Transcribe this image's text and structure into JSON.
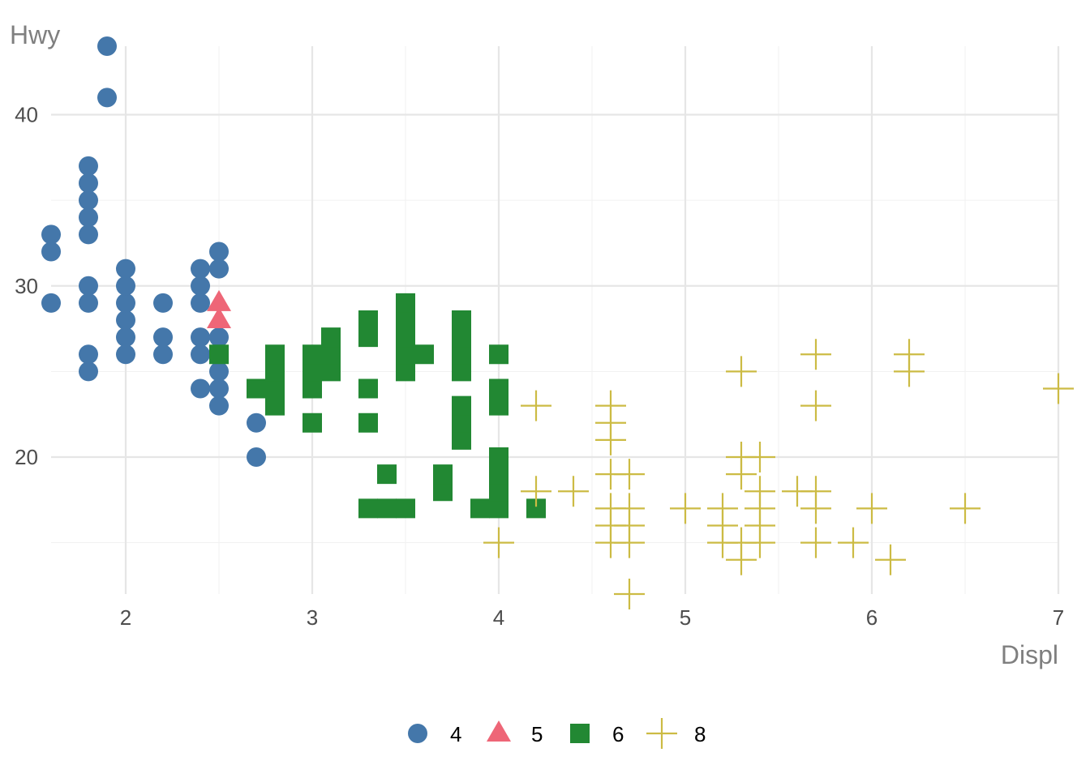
{
  "chart_data": {
    "type": "scatter",
    "title": "",
    "xlabel": "Displ",
    "ylabel": "Hwy",
    "xlim": [
      1.6,
      7.0
    ],
    "ylim": [
      12,
      44
    ],
    "x_ticks": [
      2,
      3,
      4,
      5,
      6,
      7
    ],
    "y_ticks": [
      20,
      30,
      40
    ],
    "grid": true,
    "legend_position": "bottom",
    "series": [
      {
        "name": "4",
        "shape": "circle",
        "color": "#4477AA",
        "points": [
          [
            1.6,
            29
          ],
          [
            1.6,
            32
          ],
          [
            1.6,
            33
          ],
          [
            1.8,
            25
          ],
          [
            1.8,
            26
          ],
          [
            1.8,
            29
          ],
          [
            1.8,
            30
          ],
          [
            1.8,
            33
          ],
          [
            1.8,
            34
          ],
          [
            1.8,
            35
          ],
          [
            1.8,
            36
          ],
          [
            1.8,
            37
          ],
          [
            1.9,
            41
          ],
          [
            1.9,
            44
          ],
          [
            2.0,
            26
          ],
          [
            2.0,
            27
          ],
          [
            2.0,
            28
          ],
          [
            2.0,
            29
          ],
          [
            2.0,
            30
          ],
          [
            2.0,
            31
          ],
          [
            2.2,
            26
          ],
          [
            2.2,
            27
          ],
          [
            2.2,
            29
          ],
          [
            2.4,
            24
          ],
          [
            2.4,
            26
          ],
          [
            2.4,
            27
          ],
          [
            2.4,
            29
          ],
          [
            2.4,
            30
          ],
          [
            2.4,
            31
          ],
          [
            2.5,
            23
          ],
          [
            2.5,
            24
          ],
          [
            2.5,
            25
          ],
          [
            2.5,
            26
          ],
          [
            2.5,
            27
          ],
          [
            2.5,
            31
          ],
          [
            2.5,
            32
          ],
          [
            2.7,
            20
          ],
          [
            2.7,
            22
          ]
        ]
      },
      {
        "name": "5",
        "shape": "triangle",
        "color": "#EE6677",
        "points": [
          [
            2.5,
            28
          ],
          [
            2.5,
            29
          ]
        ]
      },
      {
        "name": "6",
        "shape": "square",
        "color": "#228833",
        "points": [
          [
            2.5,
            26
          ],
          [
            2.7,
            24
          ],
          [
            2.8,
            23
          ],
          [
            2.8,
            24
          ],
          [
            2.8,
            25
          ],
          [
            2.8,
            26
          ],
          [
            3.0,
            22
          ],
          [
            3.0,
            24
          ],
          [
            3.0,
            25
          ],
          [
            3.0,
            26
          ],
          [
            3.1,
            25
          ],
          [
            3.1,
            26
          ],
          [
            3.1,
            27
          ],
          [
            3.3,
            17
          ],
          [
            3.3,
            22
          ],
          [
            3.3,
            24
          ],
          [
            3.3,
            27
          ],
          [
            3.3,
            28
          ],
          [
            3.4,
            17
          ],
          [
            3.4,
            19
          ],
          [
            3.5,
            17
          ],
          [
            3.5,
            25
          ],
          [
            3.5,
            26
          ],
          [
            3.5,
            27
          ],
          [
            3.5,
            28
          ],
          [
            3.5,
            29
          ],
          [
            3.6,
            26
          ],
          [
            3.7,
            18
          ],
          [
            3.7,
            19
          ],
          [
            3.8,
            21
          ],
          [
            3.8,
            22
          ],
          [
            3.8,
            23
          ],
          [
            3.8,
            25
          ],
          [
            3.8,
            26
          ],
          [
            3.8,
            27
          ],
          [
            3.8,
            28
          ],
          [
            3.9,
            17
          ],
          [
            4.0,
            17
          ],
          [
            4.0,
            18
          ],
          [
            4.0,
            19
          ],
          [
            4.0,
            20
          ],
          [
            4.0,
            23
          ],
          [
            4.0,
            24
          ],
          [
            4.0,
            26
          ],
          [
            4.2,
            17
          ]
        ]
      },
      {
        "name": "8",
        "shape": "cross",
        "color": "#CCBB44",
        "points": [
          [
            4.0,
            15
          ],
          [
            4.2,
            18
          ],
          [
            4.2,
            23
          ],
          [
            4.4,
            18
          ],
          [
            4.6,
            15
          ],
          [
            4.6,
            16
          ],
          [
            4.6,
            17
          ],
          [
            4.6,
            19
          ],
          [
            4.6,
            21
          ],
          [
            4.6,
            22
          ],
          [
            4.6,
            23
          ],
          [
            4.7,
            12
          ],
          [
            4.7,
            15
          ],
          [
            4.7,
            16
          ],
          [
            4.7,
            17
          ],
          [
            4.7,
            19
          ],
          [
            5.0,
            17
          ],
          [
            5.2,
            15
          ],
          [
            5.2,
            16
          ],
          [
            5.2,
            17
          ],
          [
            5.3,
            14
          ],
          [
            5.3,
            15
          ],
          [
            5.3,
            19
          ],
          [
            5.3,
            20
          ],
          [
            5.3,
            25
          ],
          [
            5.4,
            15
          ],
          [
            5.4,
            16
          ],
          [
            5.4,
            17
          ],
          [
            5.4,
            18
          ],
          [
            5.4,
            20
          ],
          [
            5.6,
            18
          ],
          [
            5.7,
            15
          ],
          [
            5.7,
            17
          ],
          [
            5.7,
            18
          ],
          [
            5.7,
            23
          ],
          [
            5.7,
            26
          ],
          [
            5.9,
            15
          ],
          [
            6.0,
            17
          ],
          [
            6.1,
            14
          ],
          [
            6.2,
            25
          ],
          [
            6.2,
            26
          ],
          [
            6.5,
            17
          ],
          [
            7.0,
            24
          ]
        ]
      }
    ]
  }
}
